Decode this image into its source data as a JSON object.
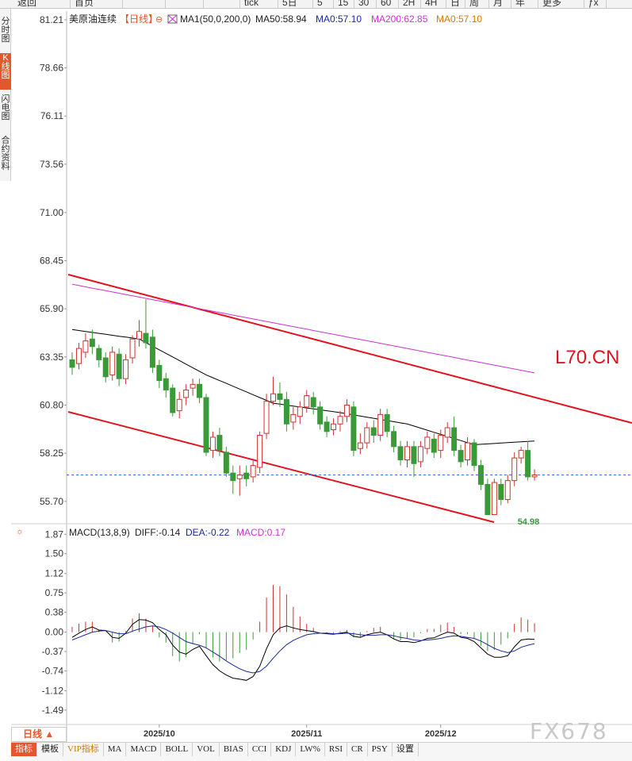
{
  "toolbar": {
    "items": [
      "返回",
      "首页",
      "",
      "",
      "",
      "tick",
      "5日",
      "5",
      "15",
      "30",
      "60",
      "2H",
      "4H",
      "日",
      "周",
      "月",
      "年",
      "更多",
      "ƒx",
      ""
    ]
  },
  "left_tabs": [
    {
      "label": "分时图",
      "active": false
    },
    {
      "label": "K线图",
      "active": true
    },
    {
      "label": "闪电图",
      "active": false
    },
    {
      "label": "合约资料",
      "active": false
    }
  ],
  "header": {
    "symbol": "美原油连续",
    "period_tag": "【日线】",
    "ma_params": "MA1(50,0,200,0)",
    "ma50": "MA50:58.94",
    "ma0a": "MA0:57.10",
    "ma200": "MA200:62.85",
    "ma0b": "MA0:57.10"
  },
  "macd_header": {
    "params": "MACD(13,8,9)",
    "diff": "DIFF:-0.14",
    "dea": "DEA:-0.22",
    "macd": "MACD:0.17"
  },
  "annotations": {
    "low_label": "54.98",
    "symbol_label": "L70.CN"
  },
  "bottom": {
    "period_button": "日线 ▲",
    "tabs": [
      {
        "label": "指标",
        "active": true
      },
      {
        "label": "模板",
        "active": false
      },
      {
        "label": "VIP指标",
        "active": false,
        "vip": true
      },
      {
        "label": "MA",
        "active": false
      },
      {
        "label": "MACD",
        "active": false
      },
      {
        "label": "BOLL",
        "active": false
      },
      {
        "label": "VOL",
        "active": false
      },
      {
        "label": "BIAS",
        "active": false
      },
      {
        "label": "CCI",
        "active": false
      },
      {
        "label": "KDJ",
        "active": false
      },
      {
        "label": "LW%",
        "active": false
      },
      {
        "label": "RSI",
        "active": false
      },
      {
        "label": "CR",
        "active": false
      },
      {
        "label": "PSY",
        "active": false
      },
      {
        "label": "设置",
        "active": false
      }
    ]
  },
  "watermark": "FX678",
  "colors": {
    "up": "#cc3333",
    "down": "#3a9a3a",
    "ma50": "#000000",
    "ma200": "#cc33cc",
    "channel": "#e0141e",
    "dea": "#1a2a9a",
    "diff": "#000000",
    "current_price_line": "#3a6fd8",
    "accent": "#e4572e"
  },
  "chart_data": [
    {
      "type": "candlestick",
      "title": "美原油连续",
      "y_ticks": [
        81.21,
        78.66,
        76.11,
        73.56,
        71.0,
        68.45,
        65.9,
        63.35,
        60.8,
        58.25,
        55.7
      ],
      "ylim": [
        54.6,
        81.5
      ],
      "x_labels": [
        "2025/10",
        "2025/11",
        "2025/12"
      ],
      "x_label_index": [
        13,
        35,
        55
      ],
      "current_price": 57.1,
      "low_marker": {
        "index": 66,
        "value": 54.98
      },
      "candles": [
        [
          63.2,
          62.8,
          63.6,
          62.4
        ],
        [
          63.0,
          63.8,
          64.1,
          62.7
        ],
        [
          63.6,
          64.2,
          64.6,
          63.3
        ],
        [
          64.3,
          63.9,
          64.8,
          63.5
        ],
        [
          63.8,
          63.2,
          64.0,
          62.8
        ],
        [
          63.3,
          62.3,
          63.6,
          62.0
        ],
        [
          62.4,
          63.6,
          63.9,
          62.1
        ],
        [
          63.5,
          62.2,
          63.8,
          61.8
        ],
        [
          62.2,
          63.2,
          63.5,
          61.9
        ],
        [
          63.3,
          64.3,
          64.5,
          63.0
        ],
        [
          64.3,
          64.7,
          65.3,
          63.9
        ],
        [
          64.6,
          64.1,
          66.4,
          63.8
        ],
        [
          64.4,
          62.8,
          64.8,
          62.5
        ],
        [
          62.9,
          62.1,
          63.2,
          61.7
        ],
        [
          62.2,
          61.6,
          62.5,
          61.2
        ],
        [
          61.7,
          60.4,
          61.9,
          60.2
        ],
        [
          60.5,
          61.1,
          61.5,
          60.1
        ],
        [
          61.2,
          61.6,
          61.9,
          60.8
        ],
        [
          61.7,
          61.9,
          62.2,
          61.3
        ],
        [
          61.9,
          61.2,
          62.2,
          60.9
        ],
        [
          61.2,
          58.3,
          61.4,
          58.1
        ],
        [
          58.4,
          59.1,
          59.4,
          58.0
        ],
        [
          59.2,
          58.4,
          59.6,
          58.1
        ],
        [
          58.3,
          57.2,
          58.6,
          57.0
        ],
        [
          57.2,
          56.8,
          57.6,
          56.1
        ],
        [
          56.9,
          57.1,
          57.6,
          56.0
        ],
        [
          57.2,
          56.9,
          57.6,
          56.5
        ],
        [
          57.0,
          57.6,
          57.9,
          56.7
        ],
        [
          57.5,
          59.2,
          59.4,
          57.2
        ],
        [
          59.3,
          61.0,
          61.4,
          59.0
        ],
        [
          61.0,
          61.4,
          62.3,
          60.8
        ],
        [
          61.4,
          61.1,
          62.0,
          60.7
        ],
        [
          61.1,
          59.8,
          61.5,
          59.4
        ],
        [
          59.9,
          60.3,
          60.7,
          59.5
        ],
        [
          60.2,
          60.7,
          61.0,
          59.8
        ],
        [
          60.7,
          61.3,
          61.6,
          60.4
        ],
        [
          61.2,
          60.7,
          61.5,
          60.3
        ],
        [
          60.7,
          59.8,
          61.0,
          59.5
        ],
        [
          59.9,
          59.4,
          60.2,
          59.1
        ],
        [
          59.5,
          59.8,
          60.1,
          59.2
        ],
        [
          59.8,
          60.2,
          60.5,
          59.4
        ],
        [
          60.2,
          60.8,
          61.1,
          59.9
        ],
        [
          60.7,
          58.4,
          61.0,
          58.1
        ],
        [
          58.5,
          58.8,
          59.3,
          58.2
        ],
        [
          58.8,
          59.6,
          59.9,
          58.5
        ],
        [
          59.6,
          59.2,
          60.0,
          58.8
        ],
        [
          59.2,
          60.3,
          60.6,
          58.9
        ],
        [
          60.3,
          59.4,
          60.6,
          59.1
        ],
        [
          59.4,
          58.6,
          59.7,
          58.3
        ],
        [
          58.6,
          57.9,
          58.9,
          57.6
        ],
        [
          57.9,
          58.6,
          58.9,
          57.5
        ],
        [
          58.6,
          57.7,
          58.9,
          57.0
        ],
        [
          57.8,
          58.6,
          58.9,
          57.5
        ],
        [
          58.5,
          59.1,
          59.4,
          58.2
        ],
        [
          59.0,
          58.3,
          59.3,
          58.0
        ],
        [
          58.4,
          59.2,
          59.5,
          58.0
        ],
        [
          59.1,
          59.6,
          59.9,
          58.8
        ],
        [
          59.6,
          58.4,
          60.2,
          58.1
        ],
        [
          58.4,
          57.8,
          58.7,
          57.5
        ],
        [
          57.9,
          58.8,
          59.1,
          57.6
        ],
        [
          58.8,
          57.6,
          59.0,
          57.3
        ],
        [
          57.6,
          56.6,
          57.9,
          56.3
        ],
        [
          56.6,
          55.0,
          56.9,
          54.98
        ],
        [
          55.0,
          56.7,
          56.9,
          54.98
        ],
        [
          56.6,
          55.8,
          56.9,
          55.5
        ],
        [
          55.8,
          56.8,
          57.1,
          55.6
        ],
        [
          56.8,
          58.0,
          58.3,
          56.5
        ],
        [
          58.0,
          58.4,
          58.6,
          57.7
        ],
        [
          58.4,
          57.0,
          58.9,
          56.8
        ],
        [
          57.0,
          57.1,
          57.4,
          56.8
        ]
      ]
    },
    {
      "type": "line",
      "title": "MACD(13,8,9)",
      "y_ticks": [
        1.87,
        1.5,
        1.12,
        0.75,
        0.38,
        0.0,
        -0.37,
        -0.74,
        -1.12,
        -1.49
      ],
      "ylim": [
        -1.75,
        1.95
      ],
      "series": [
        {
          "name": "DIFF",
          "values": [
            -0.1,
            -0.02,
            0.05,
            0.1,
            0.04,
            0.03,
            -0.1,
            -0.12,
            -0.02,
            0.15,
            0.24,
            0.23,
            0.18,
            0.05,
            -0.05,
            -0.25,
            -0.38,
            -0.42,
            -0.33,
            -0.27,
            -0.45,
            -0.62,
            -0.74,
            -0.82,
            -0.88,
            -0.9,
            -0.92,
            -0.85,
            -0.65,
            -0.32,
            -0.05,
            0.08,
            0.12,
            0.08,
            0.05,
            0.03,
            0.01,
            -0.02,
            -0.03,
            -0.04,
            -0.02,
            0.0,
            -0.08,
            -0.1,
            -0.05,
            -0.02,
            0.0,
            -0.05,
            -0.13,
            -0.18,
            -0.18,
            -0.2,
            -0.17,
            -0.12,
            -0.11,
            -0.05,
            0.0,
            -0.02,
            -0.1,
            -0.12,
            -0.18,
            -0.3,
            -0.42,
            -0.48,
            -0.48,
            -0.45,
            -0.28,
            -0.15,
            -0.13,
            -0.14
          ]
        },
        {
          "name": "DEA",
          "values": [
            -0.15,
            -0.1,
            -0.05,
            0.0,
            0.02,
            0.03,
            0.0,
            -0.03,
            -0.03,
            0.02,
            0.06,
            0.1,
            0.12,
            0.1,
            0.05,
            -0.02,
            -0.1,
            -0.18,
            -0.22,
            -0.25,
            -0.3,
            -0.38,
            -0.46,
            -0.55,
            -0.63,
            -0.7,
            -0.75,
            -0.78,
            -0.75,
            -0.65,
            -0.5,
            -0.36,
            -0.24,
            -0.16,
            -0.1,
            -0.05,
            -0.03,
            -0.02,
            -0.02,
            -0.03,
            -0.03,
            -0.02,
            -0.03,
            -0.05,
            -0.06,
            -0.06,
            -0.05,
            -0.05,
            -0.07,
            -0.1,
            -0.12,
            -0.15,
            -0.16,
            -0.15,
            -0.14,
            -0.12,
            -0.09,
            -0.07,
            -0.08,
            -0.1,
            -0.12,
            -0.17,
            -0.24,
            -0.31,
            -0.36,
            -0.39,
            -0.36,
            -0.29,
            -0.25,
            -0.22
          ]
        }
      ],
      "histogram": [
        0.1,
        0.16,
        0.2,
        0.2,
        0.04,
        0.0,
        -0.2,
        -0.18,
        0.02,
        0.26,
        0.36,
        0.26,
        0.12,
        -0.1,
        -0.2,
        -0.46,
        -0.56,
        -0.48,
        -0.22,
        -0.04,
        -0.3,
        -0.48,
        -0.56,
        -0.54,
        -0.5,
        -0.4,
        -0.34,
        -0.14,
        0.2,
        0.66,
        0.9,
        0.88,
        0.72,
        0.48,
        0.3,
        0.16,
        0.08,
        0.0,
        -0.02,
        -0.02,
        0.02,
        0.04,
        -0.1,
        -0.1,
        0.02,
        0.08,
        0.1,
        0.0,
        -0.12,
        -0.16,
        -0.12,
        -0.1,
        -0.02,
        0.06,
        0.06,
        0.14,
        0.18,
        0.1,
        -0.04,
        -0.04,
        -0.12,
        -0.26,
        -0.36,
        -0.34,
        -0.24,
        -0.12,
        0.16,
        0.28,
        0.24,
        0.17
      ]
    }
  ]
}
